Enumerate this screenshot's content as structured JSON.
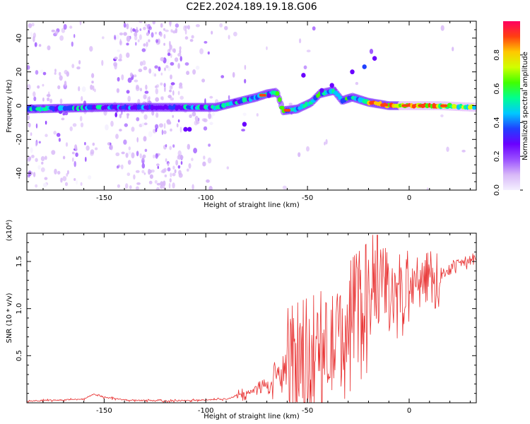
{
  "title": "C2E2.2024.189.19.18.G06",
  "chart_data": [
    {
      "type": "heatmap",
      "xlabel": "Height of straight line (km)",
      "ylabel": "Frequency (Hz)",
      "xlim": [
        -188,
        33
      ],
      "ylim": [
        -50,
        50
      ],
      "xticks": [
        -150,
        -100,
        -50,
        0
      ],
      "yticks": [
        -40,
        -20,
        0,
        20,
        40
      ],
      "colorbar": {
        "label": "Normalized spectral amplitude",
        "range": [
          0,
          1
        ],
        "ticks": [
          "0.0",
          "0.2",
          "0.4",
          "0.6",
          "0.8"
        ],
        "colors": [
          "#f4f0ff",
          "#d8b8f8",
          "#9a50ff",
          "#6a00ff",
          "#2040ff",
          "#00c8ff",
          "#00ff90",
          "#40ff00",
          "#d0ff00",
          "#ffc800",
          "#ff4010",
          "#ff0060"
        ]
      },
      "ridge": [
        {
          "x": -188,
          "y": -2
        },
        {
          "x": -150,
          "y": -1
        },
        {
          "x": -130,
          "y": -1
        },
        {
          "x": -110,
          "y": -1
        },
        {
          "x": -95,
          "y": -1
        },
        {
          "x": -85,
          "y": 2
        },
        {
          "x": -75,
          "y": 5
        },
        {
          "x": -70,
          "y": 7
        },
        {
          "x": -65,
          "y": 8
        },
        {
          "x": -62,
          "y": -3
        },
        {
          "x": -55,
          "y": -2
        },
        {
          "x": -48,
          "y": 2
        },
        {
          "x": -44,
          "y": 7
        },
        {
          "x": -37,
          "y": 9
        },
        {
          "x": -33,
          "y": 3
        },
        {
          "x": -28,
          "y": 5
        },
        {
          "x": -20,
          "y": 2
        },
        {
          "x": -10,
          "y": 0
        },
        {
          "x": 0,
          "y": 0
        },
        {
          "x": 15,
          "y": 0
        },
        {
          "x": 33,
          "y": -1
        }
      ]
    },
    {
      "type": "line",
      "xlabel": "Height of straight line (km)",
      "ylabel": "SNR (10 * v/v)",
      "y_multiplier": "(x10⁴)",
      "xlim": [
        -188,
        33
      ],
      "ylim": [
        0,
        1.8
      ],
      "xticks": [
        -150,
        -100,
        -50,
        0
      ],
      "yticks": [
        0.5,
        1.0,
        1.5
      ],
      "color": "#e83030",
      "series": [
        {
          "values": [
            {
              "x": -188,
              "y": 0.02
            },
            {
              "x": -170,
              "y": 0.03
            },
            {
              "x": -160,
              "y": 0.04
            },
            {
              "x": -155,
              "y": 0.09
            },
            {
              "x": -150,
              "y": 0.06
            },
            {
              "x": -140,
              "y": 0.03
            },
            {
              "x": -120,
              "y": 0.02
            },
            {
              "x": -100,
              "y": 0.03
            },
            {
              "x": -90,
              "y": 0.04
            },
            {
              "x": -80,
              "y": 0.1
            },
            {
              "x": -75,
              "y": 0.15
            },
            {
              "x": -68,
              "y": 0.22
            },
            {
              "x": -63,
              "y": 0.3
            },
            {
              "x": -55,
              "y": 0.4
            },
            {
              "x": -45,
              "y": 0.5
            },
            {
              "x": -38,
              "y": 0.6
            },
            {
              "x": -32,
              "y": 0.75
            },
            {
              "x": -27,
              "y": 0.9
            },
            {
              "x": -22,
              "y": 1.0
            },
            {
              "x": -17,
              "y": 1.15
            },
            {
              "x": -14,
              "y": 1.4
            },
            {
              "x": -10,
              "y": 1.1
            },
            {
              "x": -5,
              "y": 1.15
            },
            {
              "x": 0,
              "y": 1.2
            },
            {
              "x": 5,
              "y": 1.25
            },
            {
              "x": 10,
              "y": 1.3
            },
            {
              "x": 15,
              "y": 1.35
            },
            {
              "x": 20,
              "y": 1.42
            },
            {
              "x": 25,
              "y": 1.48
            },
            {
              "x": 33,
              "y": 1.52
            }
          ]
        }
      ]
    }
  ]
}
